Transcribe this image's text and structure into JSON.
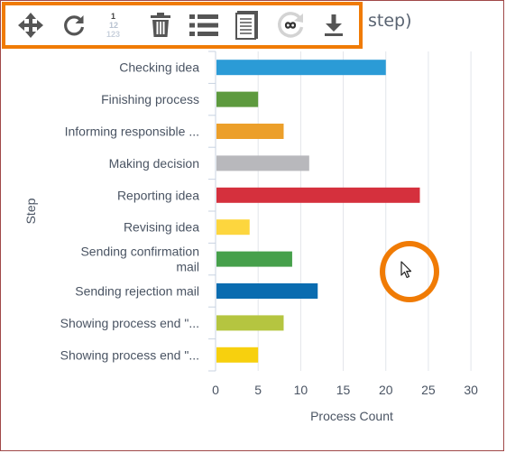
{
  "title_fragment": "step)",
  "toolbar": {
    "buttons": [
      {
        "name": "pan",
        "icon": "move-arrows-icon"
      },
      {
        "name": "refresh",
        "icon": "refresh-icon"
      },
      {
        "name": "numbering",
        "icon": "numbering-icon",
        "text_lines": [
          "1",
          "12",
          "123"
        ]
      },
      {
        "name": "delete",
        "icon": "trash-icon"
      },
      {
        "name": "list",
        "icon": "list-icon"
      },
      {
        "name": "document",
        "icon": "document-icon"
      },
      {
        "name": "infinite",
        "icon": "infinity-icon"
      },
      {
        "name": "download",
        "icon": "download-icon"
      }
    ]
  },
  "chart_data": {
    "type": "bar",
    "orientation": "horizontal",
    "xlabel": "Process Count",
    "ylabel": "Step",
    "xlim": [
      0,
      32
    ],
    "xticks": [
      0,
      5,
      10,
      15,
      20,
      25,
      30
    ],
    "grid": true,
    "categories": [
      {
        "label": [
          "Checking idea"
        ],
        "value": 20,
        "color": "#2b9bd6"
      },
      {
        "label": [
          "Finishing process"
        ],
        "value": 5,
        "color": "#5d9a3e"
      },
      {
        "label": [
          "Informing responsible ..."
        ],
        "value": 8,
        "color": "#ec9f2a"
      },
      {
        "label": [
          "Making decision"
        ],
        "value": 11,
        "color": "#b8b8bc"
      },
      {
        "label": [
          "Reporting idea"
        ],
        "value": 24,
        "color": "#d5303d"
      },
      {
        "label": [
          "Revising idea"
        ],
        "value": 4,
        "color": "#fdd63e"
      },
      {
        "label": [
          "Sending confirmation",
          "mail"
        ],
        "value": 9,
        "color": "#46a04b"
      },
      {
        "label": [
          "Sending rejection mail"
        ],
        "value": 12,
        "color": "#0a6cb0"
      },
      {
        "label": [
          "Showing process end \"..."
        ],
        "value": 8,
        "color": "#b5c540"
      },
      {
        "label": [
          "Showing process end \"..."
        ],
        "value": 5,
        "color": "#f7d00e"
      }
    ]
  }
}
